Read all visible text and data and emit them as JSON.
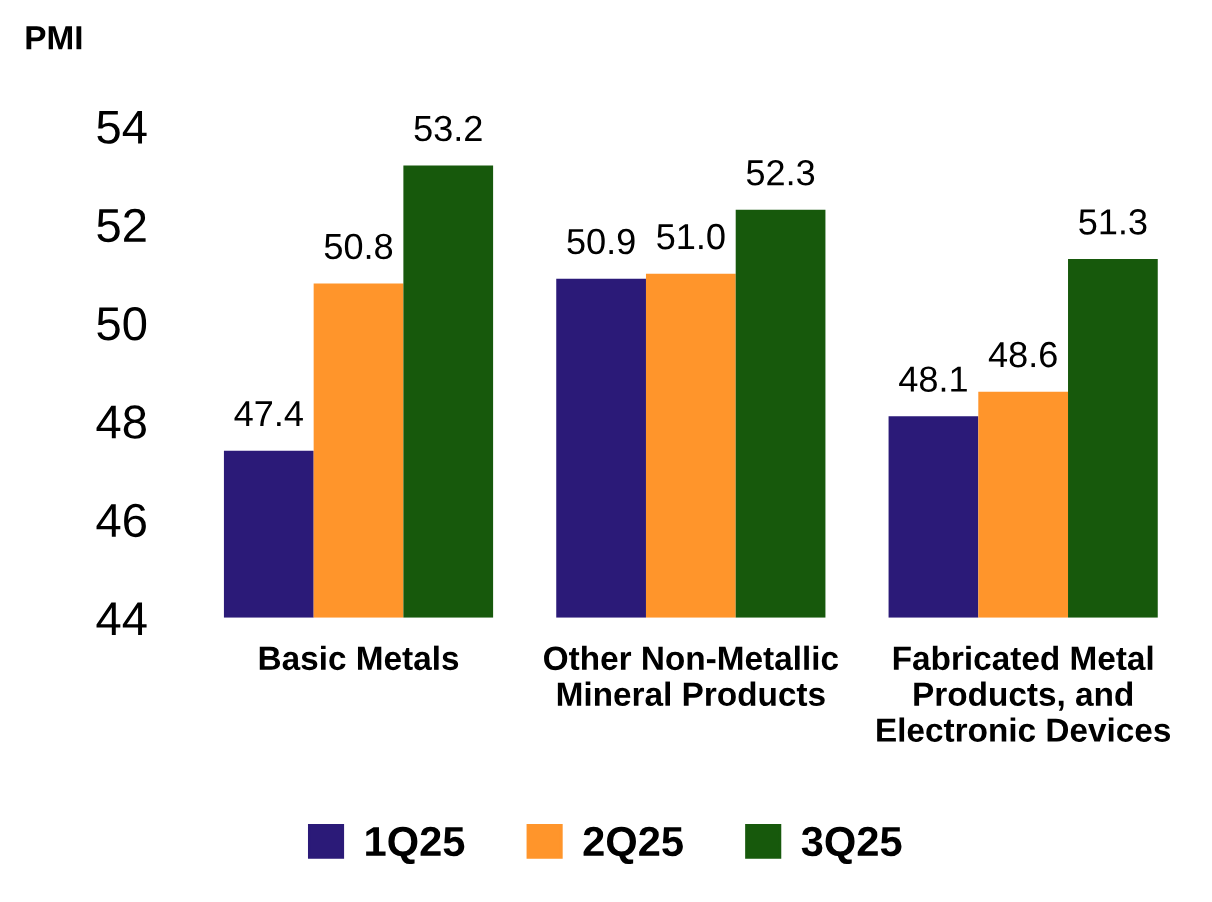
{
  "chart_data": {
    "type": "bar",
    "ylabel": "PMI",
    "categories": [
      "Basic Metals",
      "Other Non-Metallic\nMineral Products",
      "Fabricated Metal\nProducts, and\nElectronic Devices"
    ],
    "series": [
      {
        "name": "1Q25",
        "color": "#2b1a78",
        "values": [
          47.4,
          50.9,
          48.1
        ],
        "value_labels": [
          "47.4",
          "50.9",
          "48.1"
        ]
      },
      {
        "name": "2Q25",
        "color": "#ff952b",
        "values": [
          50.8,
          51.0,
          48.6
        ],
        "value_labels": [
          "50.8",
          "51.0",
          "48.6"
        ]
      },
      {
        "name": "3Q25",
        "color": "#17590c",
        "values": [
          53.2,
          52.3,
          51.3
        ],
        "value_labels": [
          "53.2",
          "52.3",
          "51.3"
        ]
      }
    ],
    "ylim": [
      44,
      54
    ],
    "yticks": [
      44,
      46,
      48,
      50,
      52,
      54
    ],
    "grid": false,
    "legend": "bottom"
  }
}
